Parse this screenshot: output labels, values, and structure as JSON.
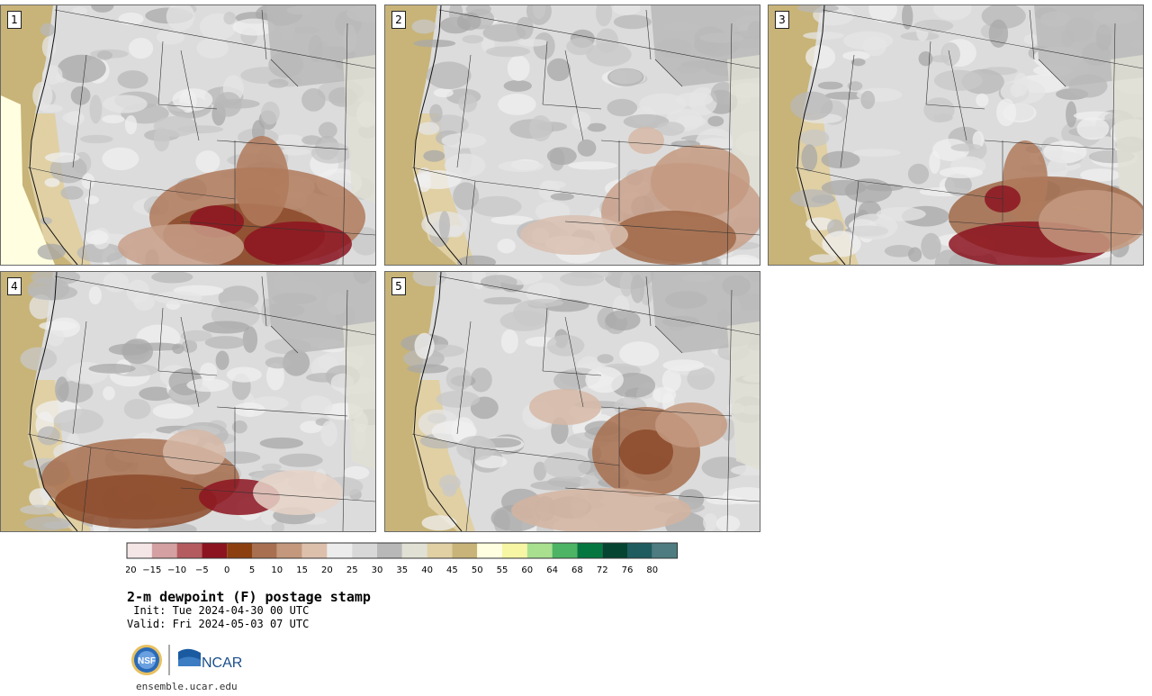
{
  "panels": [
    {
      "label": "1",
      "variant": 1
    },
    {
      "label": "2",
      "variant": 2
    },
    {
      "label": "3",
      "variant": 3
    },
    {
      "label": "4",
      "variant": 4
    },
    {
      "label": "5",
      "variant": 5
    }
  ],
  "colorbar": {
    "colors": [
      "#f4e6e6",
      "#d4a0a2",
      "#b45b60",
      "#8c1420",
      "#8c4010",
      "#a87050",
      "#c4987c",
      "#dcc0ac",
      "#ececec",
      "#d8d8d8",
      "#b8b8b8",
      "#e0e0d4",
      "#e0d0a4",
      "#c8b478",
      "#fffee0",
      "#f6f6a4",
      "#a8e090",
      "#4cb464",
      "#067640",
      "#054430",
      "#1e5c60",
      "#4e7c80"
    ],
    "ticks": [
      "−20",
      "−15",
      "−10",
      "−5",
      "0",
      "5",
      "10",
      "15",
      "20",
      "25",
      "30",
      "35",
      "40",
      "45",
      "50",
      "55",
      "60",
      "64",
      "68",
      "72",
      "76",
      "80"
    ]
  },
  "title": "2-m dewpoint (F) postage stamp",
  "init": " Init: Tue 2024-04-30 00 UTC",
  "valid": "Valid: Fri 2024-05-03 07 UTC",
  "logos": {
    "nsf": "NSF",
    "ncar": "NCAR"
  },
  "footer": "ensemble.ucar.edu"
}
